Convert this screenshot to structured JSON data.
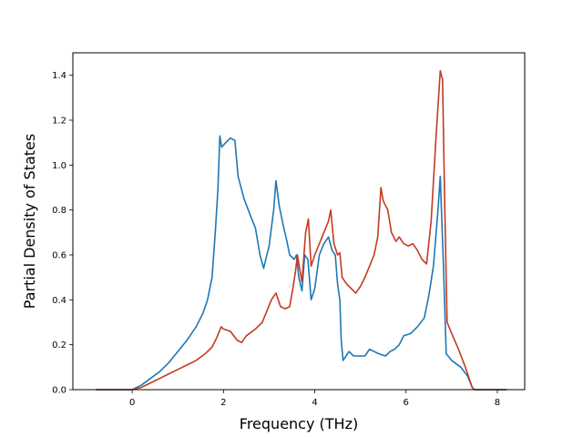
{
  "chart_data": {
    "type": "line",
    "title": "",
    "xlabel": "Frequency (THz)",
    "ylabel": "Partial Density of States",
    "xlim": [
      -1.3,
      8.6
    ],
    "ylim": [
      0,
      1.5
    ],
    "xticks": [
      0,
      2,
      4,
      6,
      8
    ],
    "xtick_labels": [
      "0",
      "2",
      "4",
      "6",
      "8"
    ],
    "yticks": [
      0,
      0.2,
      0.4,
      0.6,
      0.8,
      1.0,
      1.2,
      1.4
    ],
    "ytick_labels": [
      "0.0",
      "0.2",
      "0.4",
      "0.6",
      "0.8",
      "1.0",
      "1.2",
      "1.4"
    ],
    "grid": false,
    "legend": "none",
    "series": [
      {
        "color": "#1f77b4",
        "points": [
          [
            -0.8,
            0
          ],
          [
            0.0,
            0.0
          ],
          [
            0.2,
            0.02
          ],
          [
            0.4,
            0.05
          ],
          [
            0.6,
            0.08
          ],
          [
            0.8,
            0.12
          ],
          [
            1.0,
            0.17
          ],
          [
            1.2,
            0.22
          ],
          [
            1.4,
            0.28
          ],
          [
            1.55,
            0.34
          ],
          [
            1.65,
            0.4
          ],
          [
            1.75,
            0.5
          ],
          [
            1.82,
            0.7
          ],
          [
            1.88,
            0.9
          ],
          [
            1.92,
            1.13
          ],
          [
            1.96,
            1.08
          ],
          [
            2.05,
            1.1
          ],
          [
            2.15,
            1.12
          ],
          [
            2.25,
            1.11
          ],
          [
            2.32,
            0.95
          ],
          [
            2.45,
            0.85
          ],
          [
            2.6,
            0.77
          ],
          [
            2.7,
            0.72
          ],
          [
            2.8,
            0.6
          ],
          [
            2.88,
            0.54
          ],
          [
            2.95,
            0.6
          ],
          [
            3.0,
            0.64
          ],
          [
            3.05,
            0.72
          ],
          [
            3.1,
            0.8
          ],
          [
            3.15,
            0.93
          ],
          [
            3.22,
            0.82
          ],
          [
            3.3,
            0.74
          ],
          [
            3.38,
            0.67
          ],
          [
            3.45,
            0.6
          ],
          [
            3.55,
            0.58
          ],
          [
            3.6,
            0.6
          ],
          [
            3.65,
            0.5
          ],
          [
            3.72,
            0.44
          ],
          [
            3.78,
            0.6
          ],
          [
            3.85,
            0.58
          ],
          [
            3.92,
            0.4
          ],
          [
            4.0,
            0.45
          ],
          [
            4.1,
            0.6
          ],
          [
            4.2,
            0.65
          ],
          [
            4.3,
            0.68
          ],
          [
            4.38,
            0.62
          ],
          [
            4.45,
            0.6
          ],
          [
            4.5,
            0.47
          ],
          [
            4.55,
            0.4
          ],
          [
            4.58,
            0.22
          ],
          [
            4.62,
            0.13
          ],
          [
            4.75,
            0.17
          ],
          [
            4.85,
            0.15
          ],
          [
            5.0,
            0.15
          ],
          [
            5.1,
            0.15
          ],
          [
            5.2,
            0.18
          ],
          [
            5.3,
            0.17
          ],
          [
            5.4,
            0.16
          ],
          [
            5.55,
            0.15
          ],
          [
            5.65,
            0.17
          ],
          [
            5.75,
            0.18
          ],
          [
            5.85,
            0.2
          ],
          [
            5.95,
            0.24
          ],
          [
            6.1,
            0.25
          ],
          [
            6.25,
            0.28
          ],
          [
            6.4,
            0.32
          ],
          [
            6.5,
            0.42
          ],
          [
            6.6,
            0.55
          ],
          [
            6.7,
            0.8
          ],
          [
            6.75,
            0.95
          ],
          [
            6.82,
            0.55
          ],
          [
            6.88,
            0.16
          ],
          [
            7.0,
            0.13
          ],
          [
            7.2,
            0.1
          ],
          [
            7.35,
            0.06
          ],
          [
            7.45,
            0.01
          ],
          [
            7.5,
            0.0
          ],
          [
            8.2,
            0
          ]
        ]
      },
      {
        "color": "#c23b22",
        "points": [
          [
            -0.8,
            0
          ],
          [
            0.0,
            0.0
          ],
          [
            0.2,
            0.01
          ],
          [
            0.4,
            0.03
          ],
          [
            0.6,
            0.05
          ],
          [
            0.8,
            0.07
          ],
          [
            1.0,
            0.09
          ],
          [
            1.2,
            0.11
          ],
          [
            1.4,
            0.13
          ],
          [
            1.6,
            0.16
          ],
          [
            1.75,
            0.19
          ],
          [
            1.85,
            0.23
          ],
          [
            1.95,
            0.28
          ],
          [
            2.0,
            0.27
          ],
          [
            2.15,
            0.26
          ],
          [
            2.3,
            0.22
          ],
          [
            2.4,
            0.21
          ],
          [
            2.5,
            0.24
          ],
          [
            2.7,
            0.27
          ],
          [
            2.85,
            0.3
          ],
          [
            2.95,
            0.35
          ],
          [
            3.05,
            0.4
          ],
          [
            3.15,
            0.43
          ],
          [
            3.25,
            0.37
          ],
          [
            3.35,
            0.36
          ],
          [
            3.45,
            0.37
          ],
          [
            3.52,
            0.45
          ],
          [
            3.58,
            0.53
          ],
          [
            3.62,
            0.6
          ],
          [
            3.66,
            0.55
          ],
          [
            3.72,
            0.48
          ],
          [
            3.8,
            0.7
          ],
          [
            3.86,
            0.76
          ],
          [
            3.92,
            0.55
          ],
          [
            4.0,
            0.6
          ],
          [
            4.1,
            0.65
          ],
          [
            4.2,
            0.7
          ],
          [
            4.3,
            0.75
          ],
          [
            4.35,
            0.8
          ],
          [
            4.42,
            0.65
          ],
          [
            4.5,
            0.6
          ],
          [
            4.55,
            0.61
          ],
          [
            4.6,
            0.5
          ],
          [
            4.7,
            0.47
          ],
          [
            4.8,
            0.45
          ],
          [
            4.9,
            0.43
          ],
          [
            5.0,
            0.46
          ],
          [
            5.1,
            0.5
          ],
          [
            5.2,
            0.55
          ],
          [
            5.3,
            0.6
          ],
          [
            5.38,
            0.68
          ],
          [
            5.45,
            0.9
          ],
          [
            5.5,
            0.84
          ],
          [
            5.6,
            0.8
          ],
          [
            5.68,
            0.7
          ],
          [
            5.78,
            0.66
          ],
          [
            5.85,
            0.68
          ],
          [
            5.95,
            0.65
          ],
          [
            6.05,
            0.64
          ],
          [
            6.15,
            0.65
          ],
          [
            6.25,
            0.62
          ],
          [
            6.35,
            0.58
          ],
          [
            6.45,
            0.56
          ],
          [
            6.55,
            0.75
          ],
          [
            6.65,
            1.1
          ],
          [
            6.75,
            1.42
          ],
          [
            6.8,
            1.38
          ],
          [
            6.85,
            0.8
          ],
          [
            6.9,
            0.3
          ],
          [
            7.0,
            0.25
          ],
          [
            7.15,
            0.18
          ],
          [
            7.3,
            0.1
          ],
          [
            7.4,
            0.04
          ],
          [
            7.45,
            0.01
          ],
          [
            7.5,
            0.0
          ],
          [
            8.2,
            0
          ]
        ]
      }
    ]
  }
}
